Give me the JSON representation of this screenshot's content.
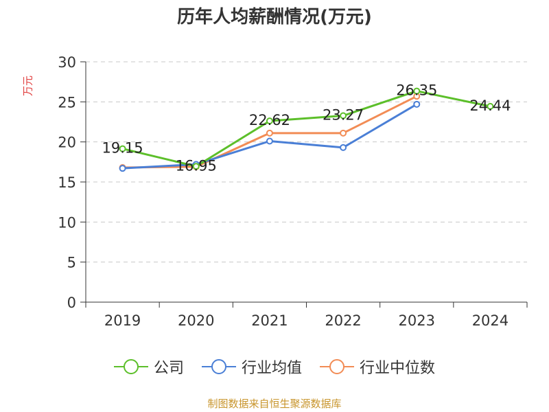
{
  "chart_data": {
    "type": "line",
    "title": "历年人均薪酬情况(万元)",
    "ylabel": "万元",
    "ylim": [
      0,
      30
    ],
    "yticks": [
      0,
      5,
      10,
      15,
      20,
      25,
      30
    ],
    "categories": [
      "2019",
      "2020",
      "2021",
      "2022",
      "2023",
      "2024"
    ],
    "grid": "horizontal-dashed",
    "legend_position": "bottom",
    "series": [
      {
        "name": "公司",
        "color": "#5cbf2a",
        "values": [
          19.15,
          16.95,
          22.62,
          23.27,
          26.35,
          24.44
        ],
        "labels": [
          "19.15",
          "16.95",
          "22.62",
          "23.27",
          "26.35",
          "24.44"
        ]
      },
      {
        "name": "行业均值",
        "color": "#4a7fd6",
        "values": [
          16.7,
          17.2,
          20.1,
          19.3,
          24.7,
          null
        ]
      },
      {
        "name": "行业中位数",
        "color": "#f28c55",
        "values": [
          16.8,
          16.9,
          21.1,
          21.1,
          25.7,
          null
        ]
      }
    ]
  },
  "source": "制图数据来自恒生聚源数据库"
}
